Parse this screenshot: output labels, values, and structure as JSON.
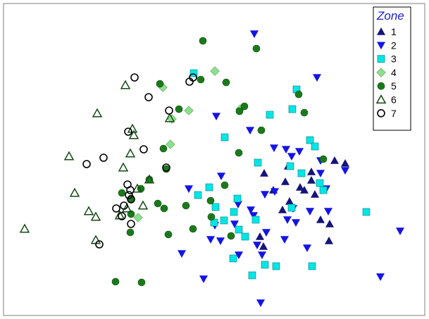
{
  "chart_data": {
    "type": "scatter",
    "title": "",
    "xlabel": "",
    "ylabel": "",
    "xlim": [
      0,
      609
    ],
    "ylim": [
      0,
      453
    ],
    "legend": {
      "title": "Zone",
      "placement": "top-right"
    },
    "series": [
      {
        "name": "1",
        "marker": "triangle-up",
        "color": "#14147a",
        "points": [
          [
            375,
            246
          ],
          [
            409,
            236
          ],
          [
            405,
            258
          ],
          [
            426,
            266
          ],
          [
            442,
            256
          ],
          [
            447,
            276
          ],
          [
            475,
            228
          ],
          [
            490,
            232
          ],
          [
            411,
            286
          ],
          [
            401,
            298
          ],
          [
            468,
            318
          ],
          [
            467,
            342
          ],
          [
            455,
            312
          ],
          [
            369,
            336
          ],
          [
            374,
            350
          ],
          [
            388,
            270
          ],
          [
            442,
            244
          ],
          [
            432,
            270
          ]
        ]
      },
      {
        "name": "2",
        "marker": "triangle-down",
        "color": "#1414e6",
        "points": [
          [
            361,
            48
          ],
          [
            450,
            110
          ],
          [
            307,
            165
          ],
          [
            355,
            185
          ],
          [
            389,
            210
          ],
          [
            406,
            212
          ],
          [
            414,
            222
          ],
          [
            425,
            215
          ],
          [
            455,
            228
          ],
          [
            490,
            242
          ],
          [
            268,
            268
          ],
          [
            314,
            250
          ],
          [
            376,
            276
          ],
          [
            390,
            272
          ],
          [
            416,
            296
          ],
          [
            420,
            316
          ],
          [
            455,
            246
          ],
          [
            463,
            268
          ],
          [
            466,
            300
          ],
          [
            338,
            290
          ],
          [
            356,
            298
          ],
          [
            360,
            306
          ],
          [
            378,
            330
          ],
          [
            408,
            312
          ],
          [
            404,
            340
          ],
          [
            436,
            352
          ],
          [
            372,
            362
          ],
          [
            339,
            362
          ],
          [
            305,
            320
          ],
          [
            299,
            340
          ],
          [
            313,
            342
          ],
          [
            258,
            360
          ],
          [
            289,
            396
          ],
          [
            370,
            430
          ],
          [
            540,
            393
          ],
          [
            568,
            328
          ],
          [
            440,
            300
          ],
          [
            365,
            348
          ],
          [
            333,
            318
          ]
        ]
      },
      {
        "name": "3",
        "marker": "square",
        "color": "#00e6e6",
        "points": [
          [
            275,
            104
          ],
          [
            421,
            127
          ],
          [
            415,
            155
          ],
          [
            383,
            163
          ],
          [
            319,
            195
          ],
          [
            366,
            231
          ],
          [
            440,
            199
          ],
          [
            447,
            208
          ],
          [
            412,
            236
          ],
          [
            428,
            246
          ],
          [
            337,
            282
          ],
          [
            297,
            266
          ],
          [
            281,
            277
          ],
          [
            306,
            294
          ],
          [
            304,
            316
          ],
          [
            332,
            301
          ],
          [
            318,
            313
          ],
          [
            454,
            260
          ],
          [
            459,
            270
          ],
          [
            414,
            295
          ],
          [
            339,
            326
          ],
          [
            348,
            336
          ],
          [
            363,
            312
          ],
          [
            331,
            367
          ],
          [
            376,
            376
          ],
          [
            392,
            378
          ],
          [
            358,
            391
          ],
          [
            443,
            378
          ],
          [
            520,
            301
          ]
        ]
      },
      {
        "name": "4",
        "marker": "diamond",
        "color": "#8ce08c",
        "points": [
          [
            305,
            101
          ],
          [
            231,
            124
          ],
          [
            268,
            157
          ],
          [
            244,
            169
          ],
          [
            341,
            155
          ],
          [
            242,
            205
          ],
          [
            196,
            309
          ]
        ]
      },
      {
        "name": "5",
        "marker": "circle",
        "color": "#1a7a1a",
        "points": [
          [
            288,
            58
          ],
          [
            364,
            69
          ],
          [
            227,
            119
          ],
          [
            285,
            113
          ],
          [
            321,
            117
          ],
          [
            424,
            134
          ],
          [
            254,
            155
          ],
          [
            347,
            151
          ],
          [
            340,
            158
          ],
          [
            432,
            160
          ],
          [
            371,
            185
          ],
          [
            232,
            211
          ],
          [
            339,
            217
          ],
          [
            459,
            226
          ],
          [
            236,
            240
          ],
          [
            200,
            268
          ],
          [
            173,
            274
          ],
          [
            212,
            255
          ],
          [
            319,
            263
          ],
          [
            224,
            289
          ],
          [
            233,
            296
          ],
          [
            264,
            292
          ],
          [
            299,
            285
          ],
          [
            274,
            325
          ],
          [
            186,
            304
          ],
          [
            185,
            330
          ],
          [
            239,
            333
          ],
          [
            300,
            308
          ],
          [
            328,
            335
          ],
          [
            164,
            400
          ],
          [
            201,
            401
          ],
          [
            186,
            282
          ]
        ]
      },
      {
        "name": "6",
        "marker": "triangle-open",
        "color": "#144a14",
        "points": [
          [
            178,
            121
          ],
          [
            138,
            161
          ],
          [
            188,
            183
          ],
          [
            190,
            192
          ],
          [
            241,
            168
          ],
          [
            185,
            218
          ],
          [
            98,
            222
          ],
          [
            175,
            238
          ],
          [
            212,
            255
          ],
          [
            195,
            268
          ],
          [
            106,
            274
          ],
          [
            126,
            300
          ],
          [
            136,
            308
          ],
          [
            203,
            292
          ],
          [
            170,
            306
          ],
          [
            35,
            325
          ],
          [
            136,
            341
          ],
          [
            180,
            296
          ]
        ]
      },
      {
        "name": "7",
        "marker": "circle-open",
        "color": "#000000",
        "points": [
          [
            191,
            110
          ],
          [
            211,
            138
          ],
          [
            269,
            116
          ],
          [
            274,
            110
          ],
          [
            240,
            157
          ],
          [
            182,
            187
          ],
          [
            204,
            212
          ],
          [
            147,
            224
          ],
          [
            123,
            233
          ],
          [
            236,
            238
          ],
          [
            181,
            262
          ],
          [
            185,
            270
          ],
          [
            186,
            283
          ],
          [
            165,
            296
          ],
          [
            176,
            292
          ],
          [
            183,
            277
          ],
          [
            173,
            307
          ],
          [
            186,
            318
          ],
          [
            141,
            347
          ]
        ]
      }
    ]
  }
}
